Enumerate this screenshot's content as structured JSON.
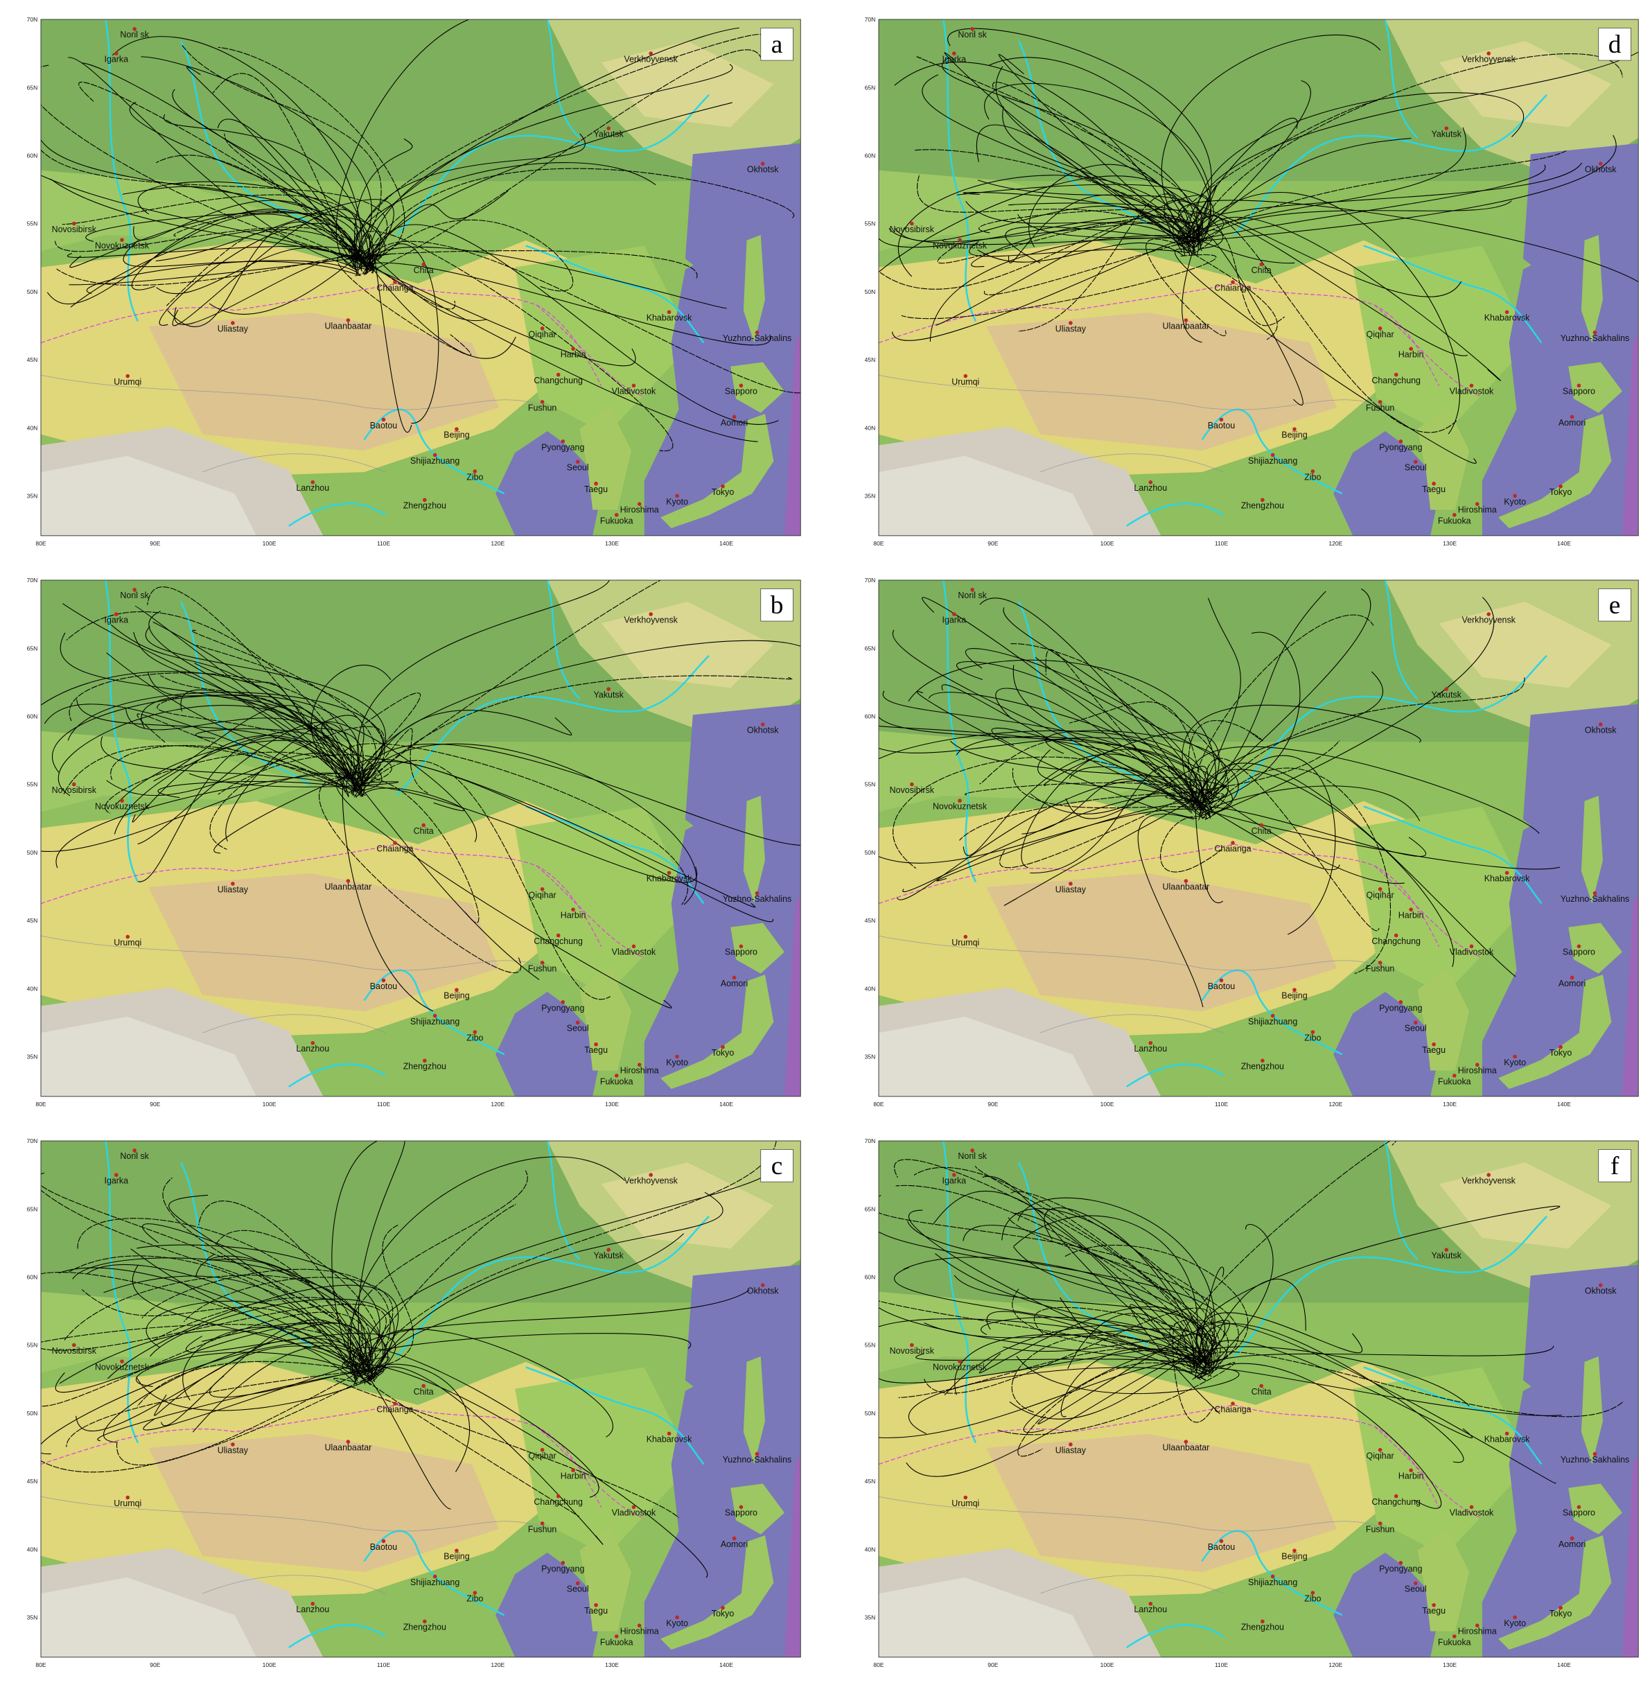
{
  "panels": [
    {
      "label": "a"
    },
    {
      "label": "b"
    },
    {
      "label": "c"
    },
    {
      "label": "d"
    },
    {
      "label": "e"
    },
    {
      "label": "f"
    }
  ],
  "cities": [
    "Noril sk",
    "Igarka",
    "Verkhoyvensk",
    "Yakutsk",
    "Okhotsk",
    "Novosibirsk",
    "Novokuznetsk",
    "Chita",
    "Chaianga",
    "Uliastay",
    "Ulaanbaatar",
    "Urumqi",
    "Qiqihar",
    "Harbin",
    "Changchung",
    "Fushun",
    "Khabarovsk",
    "Yuzhno-Sakhalins",
    "Vladivostok",
    "Sapporo",
    "Aomori",
    "Baotou",
    "Beijing",
    "Shijiazhuang",
    "Zibo",
    "Pyongyang",
    "Seoul",
    "Taegu",
    "Lanzhou",
    "Zhengzhou",
    "Hiroshima",
    "Kyoto",
    "Tokyo",
    "Fukuoka"
  ],
  "lat_ticks": [
    "70N",
    "65N",
    "60N",
    "55N",
    "50N",
    "45N",
    "40N",
    "35N"
  ],
  "lon_ticks": [
    "80E",
    "90E",
    "100E",
    "110E",
    "120E",
    "130E",
    "140E"
  ]
}
